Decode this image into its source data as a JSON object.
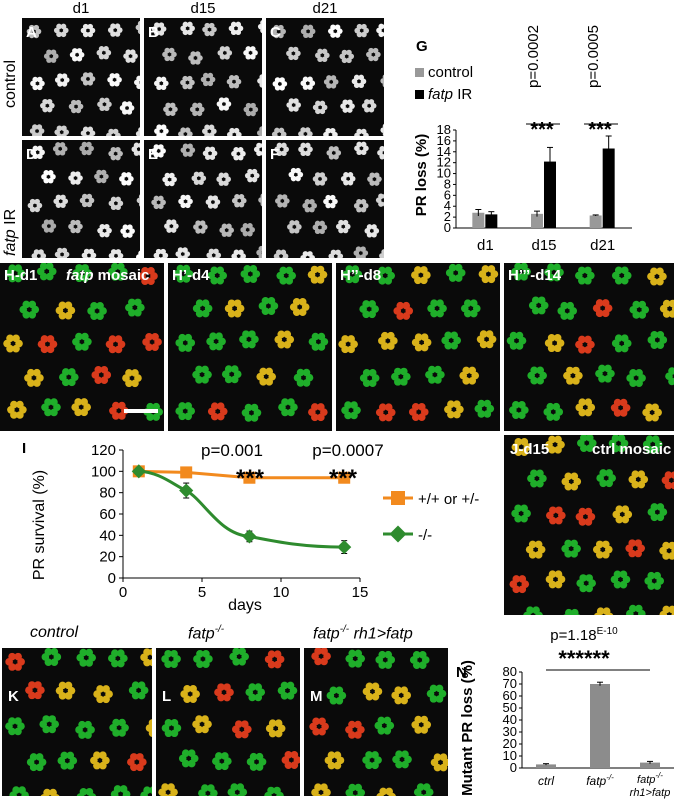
{
  "columns": [
    "d1",
    "d15",
    "d21"
  ],
  "rows": {
    "control": "control",
    "fatp": "fatp",
    "ir": " IR"
  },
  "panels_top": [
    "A",
    "B",
    "C",
    "D",
    "E",
    "F"
  ],
  "panel_G": {
    "letter": "G",
    "legend_control": "control",
    "legend_fatp": "fatp",
    "legend_ir": " IR",
    "pvalues": [
      "p=0.0002",
      "p=0.0005"
    ],
    "stars": [
      "***",
      "***"
    ],
    "colors": {
      "control": "#999999",
      "fatp_ir": "#000000"
    }
  },
  "panels_H": [
    {
      "letter": "H",
      "label": "-d1"
    },
    {
      "letter": "H’",
      "label": "-d4"
    },
    {
      "letter": "H’’",
      "label": "-d8"
    },
    {
      "letter": "H’’’",
      "label": "-d14"
    }
  ],
  "panel_H_mosaic": {
    "gene": "fatp",
    "word": " mosaic"
  },
  "panel_I": {
    "letter": "I",
    "pvalues": [
      "p=0.001",
      "p=0.0007"
    ],
    "stars": [
      "***",
      "***"
    ],
    "legend": [
      "+/+ or +/-",
      "-/-"
    ],
    "colors": {
      "wt": "#f28a1e",
      "mut": "#2e8b2e"
    }
  },
  "panel_J": {
    "letter": "J",
    "label": "-d15",
    "mosaic": "ctrl mosaic"
  },
  "panels_KLM": [
    {
      "letter": "K",
      "title": "control"
    },
    {
      "letter": "L",
      "title": "fatp",
      "sup": "-/-"
    },
    {
      "letter": "M",
      "title": "fatp",
      "sup": "-/-",
      "extra": " rh1>fatp"
    }
  ],
  "panel_N": {
    "letter": "N",
    "pvalue_base": "p=1.18",
    "pvalue_exp": "E-10",
    "stars": "******",
    "xlab_ctrl": "ctrl",
    "xlab_fatp": "fatp",
    "xlab_sup": "-/-",
    "xlab_rh1": "rh1>fatp",
    "bar_color": "#8c8c8c"
  },
  "chart_data": [
    {
      "type": "bar",
      "title": "",
      "categories": [
        "d1",
        "d15",
        "d21"
      ],
      "series": [
        {
          "name": "control",
          "values": [
            2.8,
            2.6,
            2.3
          ]
        },
        {
          "name": "fatp IR",
          "values": [
            2.5,
            12.2,
            14.6
          ]
        }
      ],
      "errors": [
        [
          0.6,
          0.5,
          0.1
        ],
        [
          0.5,
          2.6,
          2.3
        ]
      ],
      "ylabel": "PR loss (%)",
      "yticks": [
        "0",
        "2",
        "4",
        "6",
        "8",
        "10",
        "12",
        "14",
        "16",
        "18"
      ],
      "ylim": [
        0,
        18
      ]
    },
    {
      "type": "line",
      "title": "",
      "xlabel": "days",
      "ylabel": "PR survival (%)",
      "xticks": [
        "0",
        "5",
        "10",
        "15"
      ],
      "yticks": [
        "0",
        "20",
        "40",
        "60",
        "80",
        "100",
        "120"
      ],
      "xlim": [
        0,
        15
      ],
      "ylim": [
        0,
        120
      ],
      "series": [
        {
          "name": "+/+ or +/-",
          "x": [
            1,
            4,
            8,
            14
          ],
          "y": [
            100,
            99,
            94,
            94
          ],
          "err": [
            1,
            1,
            3,
            3
          ]
        },
        {
          "name": "-/-",
          "x": [
            1,
            4,
            8,
            14
          ],
          "y": [
            100,
            82,
            39,
            29
          ],
          "err": [
            1,
            7,
            5,
            6
          ]
        }
      ]
    },
    {
      "type": "bar",
      "title": "",
      "categories": [
        "ctrl",
        "fatp-/-",
        "fatp-/- rh1>fatp"
      ],
      "values": [
        3,
        70,
        4.5
      ],
      "errors": [
        0.6,
        1.5,
        1
      ],
      "ylabel": "Mutant PR loss (%)",
      "yticks": [
        "0",
        "10",
        "20",
        "30",
        "40",
        "50",
        "60",
        "70",
        "80"
      ],
      "ylim": [
        0,
        80
      ]
    }
  ]
}
